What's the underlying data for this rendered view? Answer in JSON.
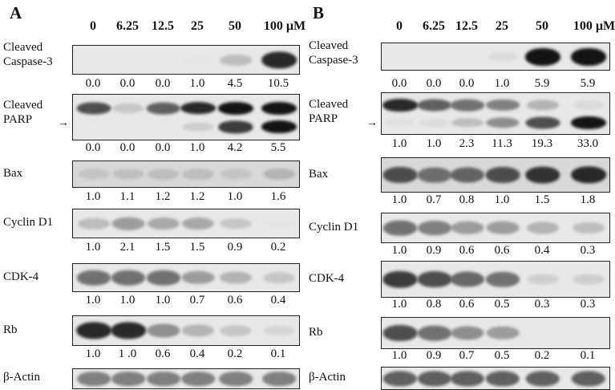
{
  "concentrations": [
    "0",
    "6.25",
    "12.5",
    "25",
    "50",
    "100 µM"
  ],
  "panels": [
    {
      "id": "a",
      "letter": "A",
      "rows": [
        {
          "name": "cleaved-caspase-3",
          "label": "Cleaved\nCaspase-3",
          "quant": [
            "0.0",
            "0.0",
            "0.0",
            "1.0",
            "4.5",
            "10.5"
          ],
          "level": [
            0.02,
            0.02,
            0.03,
            0.12,
            0.45,
            0.95
          ]
        },
        {
          "name": "cleaved-parp",
          "label": "Cleaved\nPARP",
          "arrow": true,
          "quant": [
            "0.0",
            "0.0",
            "0.0",
            "1.0",
            "4.2",
            "5.5"
          ],
          "level": [
            0.85,
            0.4,
            0.8,
            0.95,
            1.0,
            1.0
          ],
          "level2": [
            0.0,
            0.0,
            0.0,
            0.35,
            0.9,
            1.0
          ]
        },
        {
          "name": "bax",
          "label": "Bax",
          "quant": [
            "1.0",
            "1.1",
            "1.2",
            "1.2",
            "1.0",
            "1.6"
          ],
          "level": [
            0.35,
            0.38,
            0.4,
            0.4,
            0.35,
            0.45
          ]
        },
        {
          "name": "cyclin-d1",
          "label": "Cyclin D1",
          "quant": [
            "1.0",
            "2.1",
            "1.5",
            "1.5",
            "0.9",
            "0.2"
          ],
          "level": [
            0.45,
            0.6,
            0.55,
            0.55,
            0.4,
            0.12
          ]
        },
        {
          "name": "cdk-4",
          "label": "CDK-4",
          "quant": [
            "1.0",
            "1.0",
            "1.0",
            "0.7",
            "0.6",
            "0.4"
          ],
          "level": [
            0.75,
            0.75,
            0.75,
            0.6,
            0.5,
            0.4
          ]
        },
        {
          "name": "rb",
          "label": "Rb",
          "quant": [
            "1.0",
            "1 .0",
            "0.6",
            "0.4",
            "0.2",
            "0.1"
          ],
          "level": [
            0.95,
            0.95,
            0.65,
            0.5,
            0.4,
            0.3
          ]
        },
        {
          "name": "beta-actin",
          "label": "β-Actin",
          "quant": [],
          "level": [
            0.7,
            0.7,
            0.7,
            0.7,
            0.7,
            0.7
          ]
        }
      ]
    },
    {
      "id": "b",
      "letter": "B",
      "rows": [
        {
          "name": "cleaved-caspase-3",
          "label": "Cleaved\nCaspase-3",
          "quant": [
            "0.0",
            "0.0",
            "0.0",
            "1.0",
            "5.9",
            "5.9"
          ],
          "level": [
            0.02,
            0.02,
            0.05,
            0.25,
            1.0,
            1.0
          ]
        },
        {
          "name": "cleaved-parp",
          "label": "Cleaved\nPARP",
          "arrow": true,
          "quant": [
            "1.0",
            "1.0",
            "2.3",
            "11.3",
            "19.3",
            "33.0"
          ],
          "level": [
            0.95,
            0.8,
            0.75,
            0.7,
            0.5,
            0.25
          ],
          "level2": [
            0.2,
            0.25,
            0.45,
            0.65,
            0.85,
            1.0
          ]
        },
        {
          "name": "bax",
          "label": "Bax",
          "quant": [
            "1.0",
            "0.7",
            "0.8",
            "1.0",
            "1.5",
            "1.8"
          ],
          "level": [
            0.85,
            0.75,
            0.78,
            0.85,
            0.92,
            0.95
          ]
        },
        {
          "name": "cyclin-d1",
          "label": "Cyclin D1",
          "quant": [
            "1.0",
            "0.9",
            "0.6",
            "0.6",
            "0.4",
            "0.3"
          ],
          "level": [
            0.75,
            0.7,
            0.6,
            0.6,
            0.5,
            0.45
          ]
        },
        {
          "name": "cdk-4",
          "label": "CDK-4",
          "quant": [
            "1.0",
            "0.8",
            "0.6",
            "0.5",
            "0.3",
            "0.3"
          ],
          "level": [
            0.9,
            0.85,
            0.78,
            0.75,
            0.35,
            0.35
          ]
        },
        {
          "name": "rb",
          "label": "Rb",
          "quant": [
            "1.0",
            "0.9",
            "0.7",
            "0.5",
            "0.2",
            "0.1"
          ],
          "level": [
            0.85,
            0.75,
            0.65,
            0.6,
            0.05,
            0.03
          ]
        },
        {
          "name": "beta-actin",
          "label": "β-Actin",
          "quant": [],
          "level": [
            0.8,
            0.8,
            0.8,
            0.8,
            0.8,
            0.8
          ]
        }
      ]
    }
  ]
}
